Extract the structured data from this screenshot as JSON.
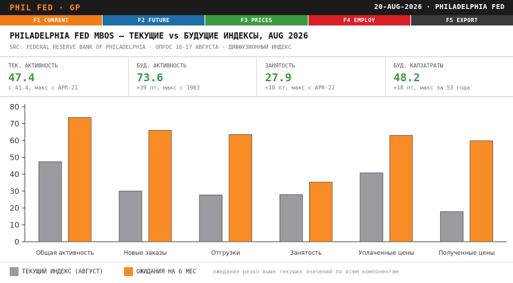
{
  "header": {
    "app_title": "PHIL FED · GP",
    "status": "20-AUG-2026 · PHILADELPHIA FED"
  },
  "fkeys": [
    {
      "label": "F1 CURRENT",
      "color": "#f07c1a"
    },
    {
      "label": "F2 FUTURE",
      "color": "#1f6fa6"
    },
    {
      "label": "F3 PRICES",
      "color": "#3d9a42"
    },
    {
      "label": "F4 EMPLOY",
      "color": "#d8202a"
    },
    {
      "label": "F5 EXPORT",
      "color": "#3b3b3b"
    }
  ],
  "title": "PHILADELPHIA FED MBOS — ТЕКУЩИЕ vs БУДУЩИЕ ИНДЕКСЫ, AUG 2026",
  "subtitle": "SRC: FEDERAL RESERVE BANK OF PHILADELPHIA · ОПРОС 10-17 АВГУСТА · ДИФФУЗИОННЫЙ ИНДЕКС",
  "metrics": [
    {
      "label": "ТЕК. АКТИВНОСТЬ",
      "value": "47.4",
      "sub": "с 41.4, макс с APR-21"
    },
    {
      "label": "БУД. АКТИВНОСТЬ",
      "value": "73.6",
      "sub": "+39 пт, макс с 1983"
    },
    {
      "label": "ЗАНЯТОСТЬ",
      "value": "27.9",
      "sub": "+18 пт, макс с APR-22"
    },
    {
      "label": "БУД. КАПЗАТРАТЫ",
      "value": "48.2",
      "sub": "+18 пт, макс за 53 года"
    }
  ],
  "chart_data": {
    "type": "bar",
    "categories": [
      "Общая активность",
      "Новые заказы",
      "Отгрузки",
      "Занятость",
      "Уплаченные цены",
      "Полученные цены"
    ],
    "series": [
      {
        "name": "ТЕКУЩИЙ ИНДЕКС (АВГУСТ)",
        "color": "#9a9ca1",
        "values": [
          47.4,
          30.0,
          27.7,
          27.9,
          40.8,
          17.8
        ]
      },
      {
        "name": "ОЖИДАНИЯ НА 6 МЕС",
        "color": "#f98c26",
        "values": [
          73.6,
          66.0,
          63.5,
          35.3,
          63.0,
          59.8
        ]
      }
    ],
    "ylim": [
      0,
      80
    ],
    "yticks": [
      0,
      10,
      20,
      30,
      40,
      50,
      60,
      70,
      80
    ],
    "grid": false,
    "legend_position": "bottom-left"
  },
  "legend_note": "ожидания резко выше текущих значений по всем компонентам"
}
